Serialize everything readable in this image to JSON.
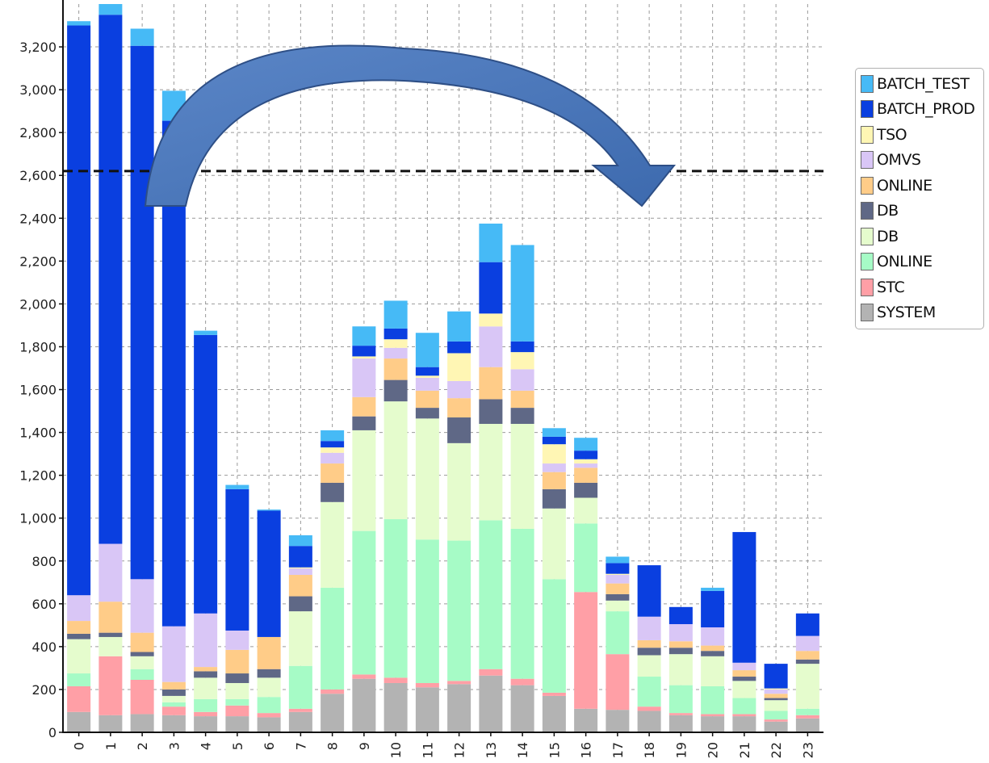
{
  "chart_data": {
    "type": "bar",
    "stacked": true,
    "categories": [
      "0",
      "1",
      "2",
      "3",
      "4",
      "5",
      "6",
      "7",
      "8",
      "9",
      "10",
      "11",
      "12",
      "13",
      "14",
      "15",
      "16",
      "17",
      "18",
      "19",
      "20",
      "21",
      "22",
      "23"
    ],
    "series": [
      {
        "name": "SYSTEM",
        "color": "#b3b3b3",
        "values": [
          95,
          80,
          85,
          80,
          75,
          75,
          70,
          95,
          180,
          250,
          230,
          210,
          225,
          265,
          220,
          170,
          110,
          105,
          100,
          80,
          75,
          75,
          50,
          65
        ]
      },
      {
        "name": "STC",
        "color": "#ff9fa6",
        "values": [
          120,
          275,
          160,
          40,
          20,
          50,
          20,
          15,
          20,
          20,
          25,
          20,
          15,
          30,
          30,
          15,
          545,
          260,
          20,
          10,
          10,
          10,
          10,
          15
        ]
      },
      {
        "name": "ONLINE",
        "color": "#a6fbc6",
        "values": [
          60,
          0,
          50,
          20,
          60,
          30,
          75,
          200,
          475,
          670,
          740,
          670,
          655,
          695,
          700,
          530,
          320,
          200,
          140,
          130,
          130,
          75,
          40,
          30
        ]
      },
      {
        "name": "DB",
        "color": "#e5fccd",
        "values": [
          160,
          90,
          60,
          30,
          100,
          75,
          90,
          255,
          400,
          470,
          550,
          565,
          455,
          450,
          490,
          330,
          120,
          50,
          100,
          145,
          140,
          80,
          50,
          210
        ]
      },
      {
        "name": "DB",
        "color": "#5f6886",
        "values": [
          25,
          20,
          20,
          30,
          30,
          45,
          40,
          70,
          90,
          65,
          100,
          50,
          120,
          115,
          75,
          90,
          70,
          30,
          35,
          30,
          25,
          20,
          10,
          20
        ]
      },
      {
        "name": "ONLINE",
        "color": "#ffcc88",
        "values": [
          60,
          145,
          90,
          35,
          20,
          110,
          150,
          100,
          90,
          90,
          100,
          80,
          90,
          150,
          80,
          80,
          70,
          50,
          35,
          30,
          25,
          30,
          20,
          40
        ]
      },
      {
        "name": "OMVS",
        "color": "#d9c6f6",
        "values": [
          120,
          270,
          250,
          260,
          250,
          90,
          0,
          30,
          50,
          180,
          50,
          60,
          80,
          190,
          100,
          40,
          20,
          40,
          110,
          80,
          85,
          35,
          20,
          70
        ]
      },
      {
        "name": "TSO",
        "color": "#fff6b4",
        "values": [
          0,
          0,
          0,
          0,
          0,
          0,
          0,
          5,
          25,
          10,
          40,
          10,
          130,
          60,
          80,
          90,
          20,
          5,
          0,
          0,
          0,
          0,
          5,
          0
        ]
      },
      {
        "name": "BATCH_PROD",
        "color": "#0a3fe0",
        "values": [
          2660,
          2470,
          2490,
          2360,
          1300,
          660,
          590,
          100,
          30,
          50,
          50,
          40,
          55,
          240,
          50,
          35,
          40,
          50,
          240,
          80,
          170,
          610,
          115,
          105
        ]
      },
      {
        "name": "BATCH_TEST",
        "color": "#46baf6",
        "values": [
          20,
          50,
          80,
          140,
          20,
          20,
          5,
          50,
          50,
          90,
          130,
          160,
          140,
          180,
          450,
          40,
          60,
          30,
          0,
          0,
          15,
          0,
          0,
          0
        ]
      }
    ],
    "legend_order": [
      "BATCH_TEST",
      "BATCH_PROD",
      "TSO",
      "OMVS",
      "ONLINE",
      "DB",
      "DB",
      "ONLINE",
      "STC",
      "SYSTEM"
    ],
    "ylim": [
      0,
      3400
    ],
    "yticks": [
      "0",
      "200",
      "400",
      "600",
      "800",
      "1,000",
      "1,200",
      "1,400",
      "1,600",
      "1,800",
      "2,000",
      "2,200",
      "2,400",
      "2,600",
      "2,800",
      "3,000",
      "3,200"
    ],
    "ytick_values": [
      0,
      200,
      400,
      600,
      800,
      1000,
      1200,
      1400,
      1600,
      1800,
      2000,
      2200,
      2400,
      2600,
      2800,
      3000,
      3200
    ],
    "reference_line": 2620,
    "grid": true,
    "legend_position": "right",
    "annotation": "curved arrow from bar 3 to bar 18"
  }
}
